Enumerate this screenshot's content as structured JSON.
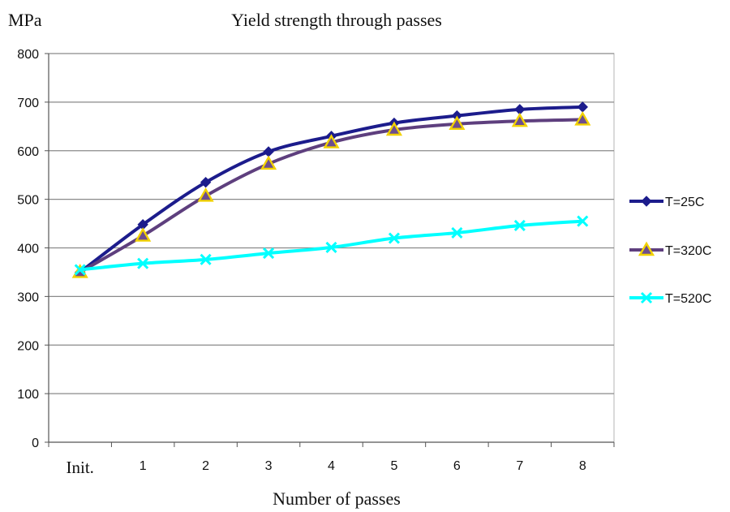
{
  "chart_data": {
    "type": "line",
    "title": "Yield strength through passes",
    "ylabel": "MPa",
    "xlabel": "Number of passes",
    "categories": [
      "Init.",
      "1",
      "2",
      "3",
      "4",
      "5",
      "6",
      "7",
      "8"
    ],
    "yticks": [
      "0",
      "100",
      "200",
      "300",
      "400",
      "500",
      "600",
      "700",
      "800"
    ],
    "ylim": [
      0,
      800
    ],
    "grid": true,
    "legend_position": "right",
    "series": [
      {
        "name": "T=25C",
        "values": [
          350,
          448,
          535,
          598,
          630,
          657,
          672,
          685,
          690
        ],
        "color": "#1c1c8c",
        "marker": "diamond"
      },
      {
        "name": "T=320C",
        "values": [
          350,
          425,
          507,
          573,
          617,
          643,
          655,
          661,
          664
        ],
        "color": "#5e3f7e",
        "marker": "triangle"
      },
      {
        "name": "T=520C",
        "values": [
          355,
          368,
          376,
          389,
          401,
          420,
          431,
          446,
          455
        ],
        "color": "#00ffff",
        "marker": "x"
      }
    ]
  }
}
